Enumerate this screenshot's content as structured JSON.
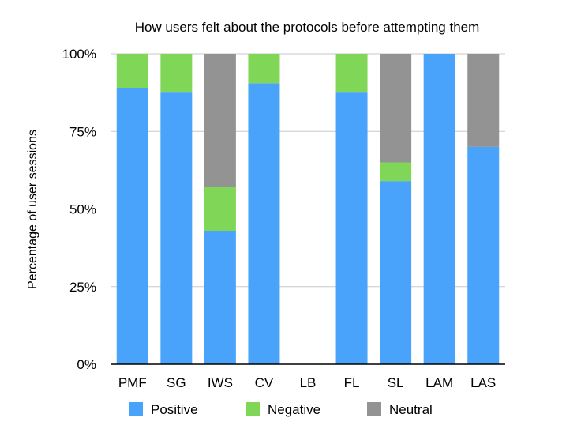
{
  "chart_data": {
    "type": "bar",
    "stacked": true,
    "title": "How users felt about the protocols before attempting them",
    "xlabel": "",
    "ylabel": "Percentage of user sessions",
    "ylim": [
      0,
      100
    ],
    "yticks": [
      "0%",
      "25%",
      "50%",
      "75%",
      "100%"
    ],
    "ytick_values": [
      0,
      25,
      50,
      75,
      100
    ],
    "grid": true,
    "legend_position": "bottom",
    "categories": [
      "PMF",
      "SG",
      "IWS",
      "CV",
      "LB",
      "FL",
      "SL",
      "LAM",
      "LAS"
    ],
    "series": [
      {
        "name": "Positive",
        "color": "#4aa3fa",
        "values": [
          89,
          87.5,
          43,
          90.5,
          0,
          87.5,
          59,
          100,
          70
        ]
      },
      {
        "name": "Negative",
        "color": "#80d656",
        "values": [
          11,
          12.5,
          14,
          9.5,
          0,
          12.5,
          6,
          0,
          0
        ]
      },
      {
        "name": "Neutral",
        "color": "#939393",
        "values": [
          0,
          0,
          43,
          0,
          0,
          0,
          35,
          0,
          30
        ]
      }
    ]
  }
}
